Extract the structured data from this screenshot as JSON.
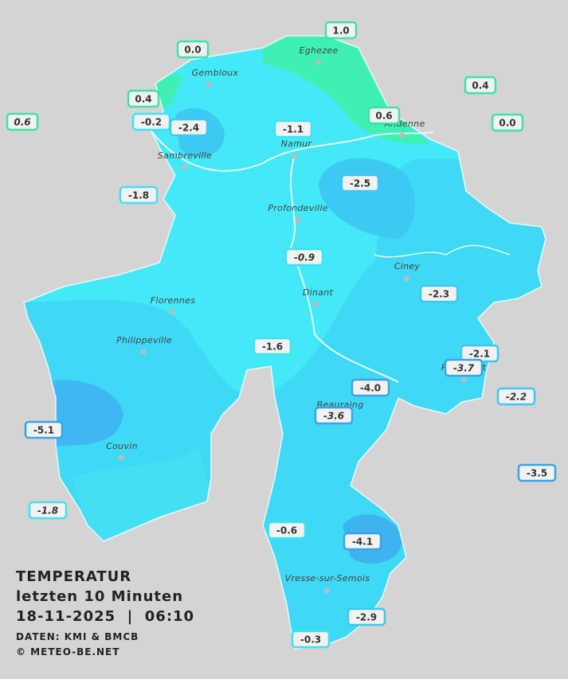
{
  "legend": {
    "title": "TEMPERATUR",
    "subtitle": "letzten 10 Minuten",
    "timestamp": "18-11-2025  |  06:10",
    "source": "DATEN: KMI & BMCB",
    "credit": "© METEO-BE.NET"
  },
  "towns": [
    "Eghezee",
    "Gembloux",
    "Andenne",
    "Namur",
    "Sambreville",
    "Profondeville",
    "Ciney",
    "Dinant",
    "Florennes",
    "Philippeville",
    "Rochefort",
    "Beauraing",
    "Couvin",
    "Vresse-sur-Semois"
  ],
  "readings": [
    {
      "label": "1.0",
      "italic": false
    },
    {
      "label": "0.0",
      "italic": false
    },
    {
      "label": "0.4",
      "italic": false
    },
    {
      "label": "0.4",
      "italic": false
    },
    {
      "label": "0.6",
      "italic": true
    },
    {
      "label": "-0.2",
      "italic": false
    },
    {
      "label": "-2.4",
      "italic": false
    },
    {
      "label": "-1.1",
      "italic": false
    },
    {
      "label": "0.6",
      "italic": false
    },
    {
      "label": "0.0",
      "italic": false
    },
    {
      "label": "-2.5",
      "italic": false
    },
    {
      "label": "-1.8",
      "italic": false
    },
    {
      "label": "-0.9",
      "italic": true
    },
    {
      "label": "-2.3",
      "italic": false
    },
    {
      "label": "-1.6",
      "italic": false
    },
    {
      "label": "-2.1",
      "italic": false
    },
    {
      "label": "-3.7",
      "italic": true
    },
    {
      "label": "-2.2",
      "italic": true
    },
    {
      "label": "-4.0",
      "italic": false
    },
    {
      "label": "-3.6",
      "italic": true
    },
    {
      "label": "-5.1",
      "italic": false
    },
    {
      "label": "-3.5",
      "italic": false
    },
    {
      "label": "-1.8",
      "italic": true
    },
    {
      "label": "-0.6",
      "italic": false
    },
    {
      "label": "-4.1",
      "italic": false
    },
    {
      "label": "-2.9",
      "italic": false
    },
    {
      "label": "-0.3",
      "italic": false
    }
  ]
}
